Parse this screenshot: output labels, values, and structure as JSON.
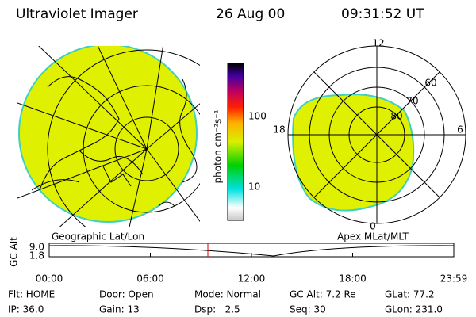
{
  "header": {
    "instrument": "Ultraviolet Imager",
    "date": "26 Aug 00",
    "time": "09:31:52 UT"
  },
  "colorbar": {
    "label": "photon cm⁻²s⁻¹",
    "ticks": [
      "100",
      "10"
    ]
  },
  "geo_map": {
    "caption": "Geographic Lat/Lon"
  },
  "polar_map": {
    "caption": "Apex MLat/MLT",
    "mlt_labels": [
      "12",
      "18",
      "6",
      "0"
    ],
    "lat_labels": [
      "60",
      "70",
      "80"
    ]
  },
  "altitude_plot": {
    "ylabel": "GC Alt",
    "yticks": [
      "9.0",
      "1.8"
    ],
    "xticks": [
      "00:00",
      "06:00",
      "12:00",
      "18:00",
      "23:59"
    ]
  },
  "status": {
    "rows": [
      [
        "Flt: HOME",
        "Door: Open",
        "Mode: Normal",
        "GC Alt: 7.2 Re",
        "GLat: 77.2"
      ],
      [
        "IP: 36.0",
        "Gain: 13",
        "Dsp:   2.5",
        "Seq: 30",
        "GLon: 231.0"
      ]
    ]
  }
}
